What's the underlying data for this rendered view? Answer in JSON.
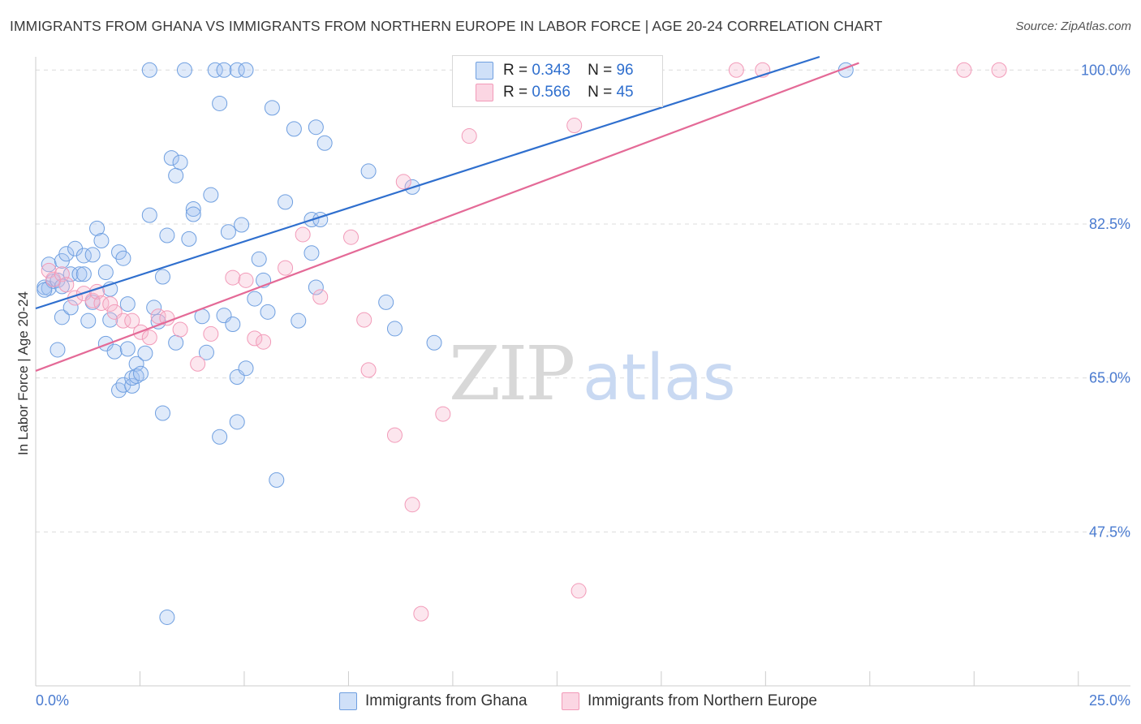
{
  "title": "IMMIGRANTS FROM GHANA VS IMMIGRANTS FROM NORTHERN EUROPE IN LABOR FORCE | AGE 20-24 CORRELATION CHART",
  "source": "Source: ZipAtlas.com",
  "watermark": {
    "zip": "ZIP",
    "atlas": "atlas"
  },
  "legend": {
    "r_label": "R =",
    "n_label": "N =",
    "rows": [
      {
        "r": "0.343",
        "n": "96",
        "color": "#6f9fe0"
      },
      {
        "r": "0.566",
        "n": "45",
        "color": "#f29ab8"
      }
    ]
  },
  "bottom_legend": [
    {
      "label": "Immigrants from Ghana",
      "color": "#6f9fe0"
    },
    {
      "label": "Immigrants from Northern Europe",
      "color": "#f29ab8"
    }
  ],
  "chart_data": {
    "type": "scatter",
    "title": "IMMIGRANTS FROM GHANA VS IMMIGRANTS FROM NORTHERN EUROPE IN LABOR FORCE | AGE 20-24 CORRELATION CHART",
    "xlabel": "",
    "ylabel": "In Labor Force | Age 20-24",
    "xlim": [
      0,
      25
    ],
    "ylim": [
      30,
      101.5
    ],
    "x_tick_labels": [
      "0.0%",
      "25.0%"
    ],
    "y_ticks": [
      {
        "value": 100,
        "label": "100.0%"
      },
      {
        "value": 82.5,
        "label": "82.5%"
      },
      {
        "value": 65,
        "label": "65.0%"
      },
      {
        "value": 47.5,
        "label": "47.5%"
      }
    ],
    "grid": "horizontal-dashed",
    "legend_placement": "top-center",
    "series": [
      {
        "name": "Immigrants from Ghana",
        "color": "#6f9fe0",
        "trend": {
          "x": [
            0,
            17.9
          ],
          "y": [
            72.9,
            101.5
          ]
        },
        "points": [
          [
            0.2,
            75.3
          ],
          [
            0.3,
            75.2
          ],
          [
            0.3,
            77.9
          ],
          [
            0.4,
            76.0
          ],
          [
            0.5,
            68.2
          ],
          [
            0.5,
            76.1
          ],
          [
            0.6,
            71.9
          ],
          [
            0.6,
            78.3
          ],
          [
            0.6,
            75.4
          ],
          [
            0.7,
            79.1
          ],
          [
            0.8,
            73.0
          ],
          [
            0.8,
            76.8
          ],
          [
            0.9,
            79.7
          ],
          [
            1.0,
            76.8
          ],
          [
            1.1,
            78.9
          ],
          [
            1.1,
            76.8
          ],
          [
            1.2,
            71.5
          ],
          [
            1.3,
            79.0
          ],
          [
            1.4,
            82.0
          ],
          [
            1.3,
            73.6
          ],
          [
            1.5,
            80.6
          ],
          [
            1.6,
            77.0
          ],
          [
            1.6,
            68.9
          ],
          [
            1.7,
            75.1
          ],
          [
            1.7,
            71.6
          ],
          [
            1.8,
            68.0
          ],
          [
            1.9,
            79.3
          ],
          [
            1.9,
            63.6
          ],
          [
            2.0,
            78.6
          ],
          [
            2.0,
            64.2
          ],
          [
            2.1,
            73.4
          ],
          [
            2.1,
            68.3
          ],
          [
            2.2,
            64.1
          ],
          [
            2.2,
            65.0
          ],
          [
            2.3,
            66.6
          ],
          [
            2.3,
            65.2
          ],
          [
            2.4,
            65.5
          ],
          [
            2.5,
            67.8
          ],
          [
            2.6,
            83.5
          ],
          [
            2.7,
            73.0
          ],
          [
            2.8,
            71.4
          ],
          [
            2.9,
            76.5
          ],
          [
            2.9,
            61.0
          ],
          [
            3.0,
            81.2
          ],
          [
            3.0,
            37.8
          ],
          [
            3.1,
            90.0
          ],
          [
            3.2,
            88.0
          ],
          [
            3.3,
            89.5
          ],
          [
            3.2,
            69.0
          ],
          [
            3.5,
            80.8
          ],
          [
            3.6,
            84.2
          ],
          [
            3.6,
            83.6
          ],
          [
            3.8,
            72.0
          ],
          [
            3.9,
            67.9
          ],
          [
            4.0,
            85.8
          ],
          [
            4.2,
            58.3
          ],
          [
            4.2,
            96.2
          ],
          [
            4.3,
            72.1
          ],
          [
            4.4,
            81.6
          ],
          [
            4.5,
            71.1
          ],
          [
            4.6,
            65.1
          ],
          [
            4.6,
            60.0
          ],
          [
            4.7,
            82.4
          ],
          [
            4.8,
            66.1
          ],
          [
            5.0,
            74.0
          ],
          [
            5.1,
            78.5
          ],
          [
            5.2,
            76.1
          ],
          [
            5.3,
            72.5
          ],
          [
            5.4,
            95.7
          ],
          [
            5.5,
            53.4
          ],
          [
            5.7,
            85.0
          ],
          [
            5.9,
            93.3
          ],
          [
            6.0,
            71.5
          ],
          [
            6.3,
            83.0
          ],
          [
            6.3,
            79.2
          ],
          [
            6.4,
            93.5
          ],
          [
            6.4,
            75.3
          ],
          [
            6.5,
            83.0
          ],
          [
            6.6,
            91.7
          ],
          [
            7.6,
            88.5
          ],
          [
            8.0,
            73.6
          ],
          [
            8.2,
            70.6
          ],
          [
            8.6,
            86.7
          ],
          [
            9.1,
            69.0
          ],
          [
            2.6,
            100
          ],
          [
            3.4,
            100
          ],
          [
            4.1,
            100
          ],
          [
            4.3,
            100
          ],
          [
            4.6,
            100
          ],
          [
            4.8,
            100
          ],
          [
            10.6,
            100
          ],
          [
            10.8,
            100
          ],
          [
            11.5,
            100
          ],
          [
            12.0,
            100
          ],
          [
            18.5,
            100
          ],
          [
            0.2,
            75.0
          ]
        ]
      },
      {
        "name": "Immigrants from Northern Europe",
        "color": "#f29ab8",
        "trend": {
          "x": [
            0,
            18.8
          ],
          "y": [
            65.8,
            100.8
          ]
        },
        "points": [
          [
            0.3,
            77.2
          ],
          [
            0.4,
            76.2
          ],
          [
            0.6,
            76.8
          ],
          [
            0.7,
            75.6
          ],
          [
            0.9,
            74.1
          ],
          [
            1.1,
            74.6
          ],
          [
            1.3,
            73.8
          ],
          [
            1.4,
            74.8
          ],
          [
            1.5,
            73.5
          ],
          [
            1.7,
            73.4
          ],
          [
            1.8,
            72.5
          ],
          [
            2.0,
            71.5
          ],
          [
            2.2,
            71.5
          ],
          [
            2.4,
            70.2
          ],
          [
            2.6,
            69.6
          ],
          [
            2.8,
            72.0
          ],
          [
            3.0,
            71.8
          ],
          [
            3.3,
            70.5
          ],
          [
            3.7,
            66.6
          ],
          [
            4.0,
            70.0
          ],
          [
            4.5,
            76.4
          ],
          [
            4.8,
            76.1
          ],
          [
            5.0,
            69.5
          ],
          [
            5.2,
            69.1
          ],
          [
            5.7,
            77.5
          ],
          [
            6.1,
            81.3
          ],
          [
            6.5,
            74.2
          ],
          [
            7.2,
            81.0
          ],
          [
            7.5,
            71.6
          ],
          [
            7.6,
            65.9
          ],
          [
            8.2,
            58.5
          ],
          [
            8.4,
            87.3
          ],
          [
            8.6,
            50.6
          ],
          [
            8.8,
            38.2
          ],
          [
            9.3,
            60.9
          ],
          [
            9.9,
            92.5
          ],
          [
            10.1,
            100
          ],
          [
            10.6,
            100
          ],
          [
            11.1,
            100
          ],
          [
            12.3,
            93.7
          ],
          [
            12.4,
            40.8
          ],
          [
            16.0,
            100
          ],
          [
            16.6,
            100
          ],
          [
            21.2,
            100
          ],
          [
            22.0,
            100
          ]
        ]
      }
    ]
  }
}
